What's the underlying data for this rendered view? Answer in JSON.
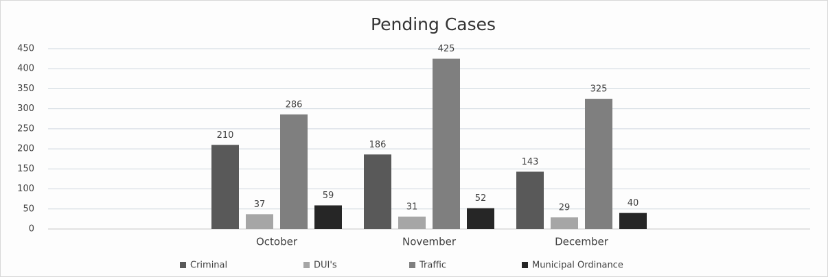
{
  "chart_data": {
    "type": "bar",
    "title": "Pending Cases",
    "categories": [
      null,
      "October",
      "November",
      "December",
      null
    ],
    "series": [
      {
        "name": "Criminal",
        "color": "#595959",
        "values": [
          null,
          210,
          186,
          143,
          null
        ]
      },
      {
        "name": "DUI's",
        "color": "#a6a6a6",
        "values": [
          null,
          37,
          31,
          29,
          null
        ]
      },
      {
        "name": "Traffic",
        "color": "#7f7f7f",
        "values": [
          null,
          286,
          425,
          325,
          null
        ]
      },
      {
        "name": "Municipal Ordinance",
        "color": "#262626",
        "values": [
          null,
          59,
          52,
          40,
          null
        ]
      }
    ],
    "ylim": [
      0,
      450
    ],
    "yticks": [
      0,
      50,
      100,
      150,
      200,
      250,
      300,
      350,
      400,
      450
    ],
    "grid": true,
    "legend": "bottom"
  }
}
